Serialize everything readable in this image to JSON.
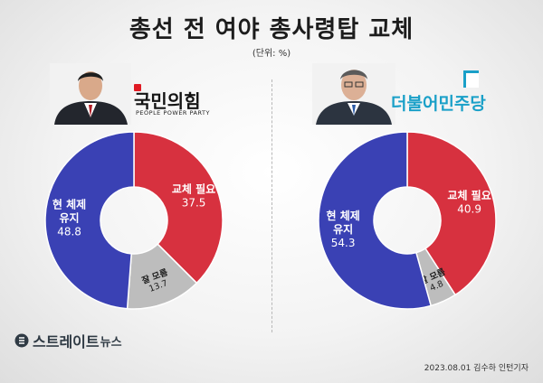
{
  "title": "총선 전 여야 총사령탑 교체",
  "unit": "(단위: %)",
  "left": {
    "party_name": "국민의힘",
    "party_sub": "PEOPLE POWER PARTY"
  },
  "right": {
    "party_name": "더불어민주당"
  },
  "brand": {
    "name": "스트레이트",
    "suffix": "뉴스"
  },
  "footer": "2023.08.01 김수하 인턴기자",
  "colors": {
    "blue": "#3a41b4",
    "red": "#d7313f",
    "gray": "#bdbdbd",
    "right_party": "#1aa0c8",
    "left_party_mark": "#e01b24"
  },
  "chart_data": [
    {
      "type": "pie",
      "subtitle": "국민의힘",
      "categories": [
        "교체 필요",
        "잘 모름",
        "현 체제 유지"
      ],
      "values": [
        37.5,
        13.7,
        48.8
      ],
      "colors": [
        "#d7313f",
        "#bdbdbd",
        "#3a41b4"
      ],
      "labels": [
        {
          "lines": [
            "교체 필요",
            "37.5"
          ]
        },
        {
          "lines": [
            "잘 모름",
            "13.7"
          ]
        },
        {
          "lines": [
            "현 체제",
            "유지",
            "48.8"
          ]
        }
      ]
    },
    {
      "type": "pie",
      "subtitle": "더불어민주당",
      "categories": [
        "교체 필요",
        "잘 모름",
        "현 체제 유지"
      ],
      "values": [
        40.9,
        4.8,
        54.3
      ],
      "colors": [
        "#d7313f",
        "#bdbdbd",
        "#3a41b4"
      ],
      "labels": [
        {
          "lines": [
            "교체 필요",
            "40.9"
          ]
        },
        {
          "lines": [
            "잘 모름",
            "4.8"
          ]
        },
        {
          "lines": [
            "현 체제",
            "유지",
            "54.3"
          ]
        }
      ]
    }
  ]
}
